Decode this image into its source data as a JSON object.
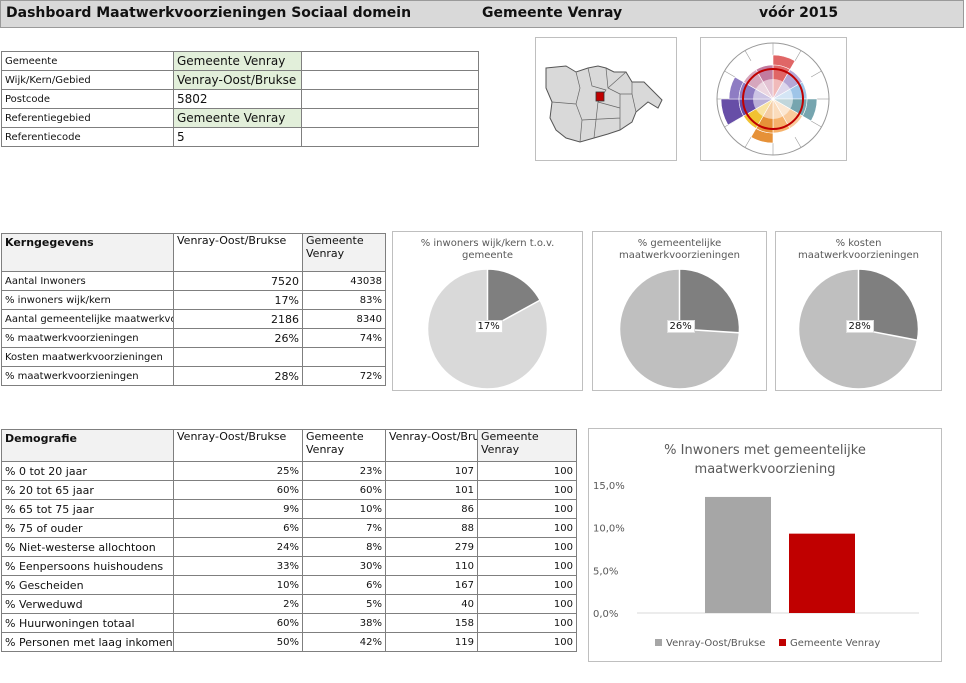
{
  "header": {
    "title": "Dashboard Maatwerkvoorzieningen Sociaal domein",
    "municipality": "Gemeente Venray",
    "period": "vóór 2015"
  },
  "info": [
    {
      "label": "Gemeente",
      "value": "Gemeente Venray",
      "highlight": true
    },
    {
      "label": "Wijk/Kern/Gebied",
      "value": "Venray-Oost/Brukse",
      "highlight": true
    },
    {
      "label": "Postcode",
      "value": "5802",
      "highlight": false
    },
    {
      "label": "Referentiegebied",
      "value": "Gemeente Venray",
      "highlight": true
    },
    {
      "label": "Referentiecode",
      "value": "5",
      "highlight": false
    }
  ],
  "kern": {
    "title": "Kerngegevens",
    "col1": "Venray-Oost/Brukse",
    "col2": "Gemeente Venray",
    "rows": [
      {
        "label": "Aantal Inwoners",
        "v1": "7520",
        "v2": "43038"
      },
      {
        "label": "% inwoners wijk/kern",
        "v1": "17%",
        "v2": "83%"
      },
      {
        "label": "Aantal gemeentelijke maatwerkvoorzieningen",
        "v1": "2186",
        "v2": "8340"
      },
      {
        "label": "% maatwerkvoorzieningen",
        "v1": "26%",
        "v2": "74%"
      },
      {
        "label": "Kosten maatwerkvoorzieningen",
        "v1": "",
        "v2": ""
      },
      {
        "label": "% maatwerkvoorzieningen",
        "v1": "28%",
        "v2": "72%"
      }
    ]
  },
  "pies": [
    {
      "title": "% inwoners wijk/kern t.o.v. gemeente",
      "label": "17%",
      "fraction": 0.17,
      "main_color": "#d9d9d9",
      "slice_color": "#7f7f7f"
    },
    {
      "title": "% gemeentelijke maatwerkvoorzieningen",
      "label": "26%",
      "fraction": 0.26,
      "main_color": "#bfbfbf",
      "slice_color": "#7f7f7f"
    },
    {
      "title": "% kosten maatwerkvoorzieningen",
      "label": "28%",
      "fraction": 0.28,
      "main_color": "#bfbfbf",
      "slice_color": "#7f7f7f"
    }
  ],
  "demo": {
    "title": "Demografie",
    "col1": "Venray-Oost/Brukse",
    "col2": "Gemeente Venray",
    "col3": "Venray-Oost/Brukse",
    "col4": "Gemeente Venray",
    "rows": [
      {
        "label": "% 0 tot 20 jaar",
        "a": "25%",
        "b": "23%",
        "c": "107",
        "d": "100"
      },
      {
        "label": "% 20 tot 65 jaar",
        "a": "60%",
        "b": "60%",
        "c": "101",
        "d": "100"
      },
      {
        "label": "% 65 tot 75 jaar",
        "a": "9%",
        "b": "10%",
        "c": "86",
        "d": "100"
      },
      {
        "label": "% 75 of ouder",
        "a": "6%",
        "b": "7%",
        "c": "88",
        "d": "100"
      },
      {
        "label": "% Niet-westerse allochtoon",
        "a": "24%",
        "b": "8%",
        "c": "279",
        "d": "100"
      },
      {
        "label": "% Eenpersoons huishoudens",
        "a": "33%",
        "b": "30%",
        "c": "110",
        "d": "100"
      },
      {
        "label": "% Gescheiden",
        "a": "10%",
        "b": "6%",
        "c": "167",
        "d": "100"
      },
      {
        "label": "% Verweduwd",
        "a": "2%",
        "b": "5%",
        "c": "40",
        "d": "100"
      },
      {
        "label": "% Huurwoningen totaal",
        "a": "60%",
        "b": "38%",
        "c": "158",
        "d": "100"
      },
      {
        "label": "% Personen met laag inkomen",
        "a": "50%",
        "b": "42%",
        "c": "119",
        "d": "100"
      }
    ]
  },
  "chart_data": {
    "type": "bar",
    "title": "% Inwoners met gemeentelijke maatwerkvoorziening",
    "categories": [
      "Venray-Oost/Brukse",
      "Gemeente Venray"
    ],
    "values": [
      13.6,
      9.3
    ],
    "colors": [
      "#a6a6a6",
      "#c00000"
    ],
    "yticks": [
      "0,0%",
      "5,0%",
      "10,0%",
      "15,0%"
    ],
    "ylim": [
      0,
      15
    ],
    "legend": [
      "Venray-Oost/Brukse",
      "Gemeente Venray"
    ],
    "legend_position": "bottom"
  }
}
